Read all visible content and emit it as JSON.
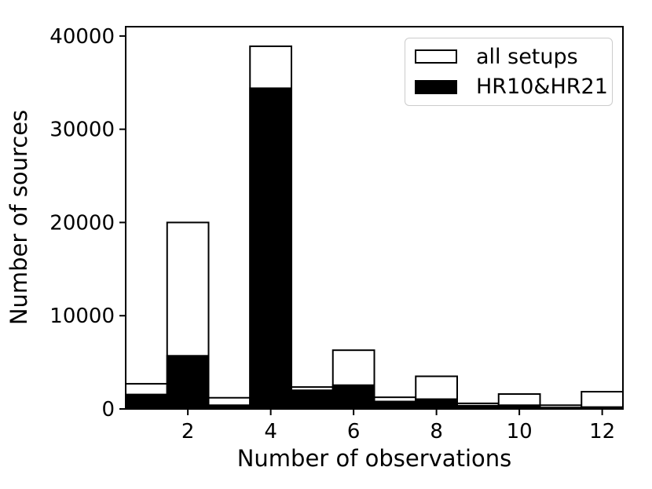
{
  "figure": {
    "background": "#ffffff",
    "xlabel": "Number of observations",
    "ylabel": "Number of sources",
    "legend": [
      {
        "label": "all setups",
        "swatch": "open-white-rect",
        "fill": "#ffffff",
        "stroke": "#000000"
      },
      {
        "label": "HR10&HR21",
        "swatch": "filled-black-rect",
        "fill": "#000000",
        "stroke": "#000000"
      }
    ]
  },
  "chart_data": {
    "type": "bar",
    "subtype": "overlaid-histogram",
    "title": "",
    "xlabel": "Number of observations",
    "ylabel": "Number of sources",
    "categories": [
      1,
      2,
      3,
      4,
      5,
      6,
      7,
      8,
      9,
      10,
      11,
      12
    ],
    "bin_width": 1,
    "series": [
      {
        "name": "all setups",
        "style": "open",
        "fill": "#ffffff",
        "edge": "#000000",
        "values": [
          2700,
          20000,
          1200,
          38900,
          2350,
          6300,
          1250,
          3500,
          600,
          1600,
          400,
          1850
        ]
      },
      {
        "name": "HR10&HR21",
        "style": "filled",
        "fill": "#000000",
        "edge": "#000000",
        "values": [
          1550,
          5700,
          400,
          34400,
          2000,
          2550,
          800,
          1050,
          350,
          400,
          150,
          200
        ]
      }
    ],
    "xlim": [
      0.5,
      12.5
    ],
    "ylim": [
      0,
      41000
    ],
    "x_ticks": [
      2,
      4,
      6,
      8,
      10,
      12
    ],
    "y_ticks": [
      0,
      10000,
      20000,
      30000,
      40000
    ],
    "grid": false,
    "legend_position": "upper right",
    "frame": true,
    "colors": {
      "axis": "#000000",
      "text": "#000000",
      "legend_border": "#cccccc"
    }
  }
}
